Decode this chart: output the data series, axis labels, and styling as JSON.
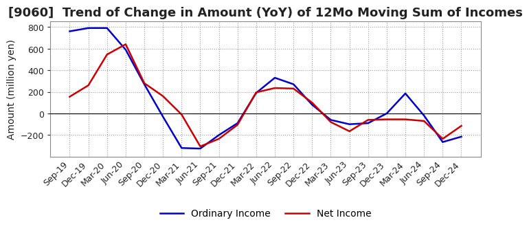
{
  "title": "[9060]  Trend of Change in Amount (YoY) of 12Mo Moving Sum of Incomes",
  "ylabel": "Amount (million yen)",
  "x_labels": [
    "Sep-19",
    "Dec-19",
    "Mar-20",
    "Jun-20",
    "Sep-20",
    "Dec-20",
    "Mar-21",
    "Jun-21",
    "Sep-21",
    "Dec-21",
    "Mar-22",
    "Jun-22",
    "Sep-22",
    "Dec-22",
    "Mar-23",
    "Jun-23",
    "Sep-23",
    "Dec-23",
    "Mar-24",
    "Jun-24",
    "Sep-24",
    "Dec-24"
  ],
  "ordinary_income": [
    760,
    790,
    790,
    590,
    270,
    -30,
    -320,
    -325,
    -200,
    -90,
    190,
    330,
    270,
    80,
    -60,
    -100,
    -90,
    0,
    185,
    -20,
    -265,
    -215
  ],
  "net_income": [
    155,
    260,
    545,
    640,
    280,
    160,
    -10,
    -305,
    -235,
    -105,
    195,
    235,
    230,
    100,
    -80,
    -165,
    -60,
    -55,
    -55,
    -70,
    -235,
    -115
  ],
  "ordinary_color": "#0000cc",
  "net_color": "#cc0000",
  "ylim": [
    -400,
    850
  ],
  "yticks": [
    -200,
    0,
    200,
    400,
    600,
    800
  ],
  "bg_color": "#ffffff",
  "grid_color": "#999999",
  "title_fontsize": 13,
  "axis_fontsize": 10,
  "tick_fontsize": 9
}
